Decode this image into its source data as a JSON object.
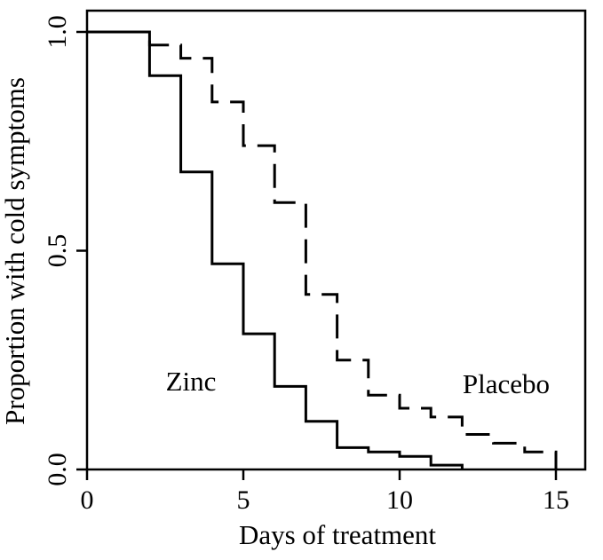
{
  "chart_data": {
    "type": "line",
    "subtype": "step (Kaplan-Meier survival curves)",
    "title": "",
    "xlabel": "Days of treatment",
    "ylabel": "Proportion with cold symptoms",
    "xlim": [
      0,
      16
    ],
    "ylim": [
      0,
      1.0
    ],
    "xticks": [
      0,
      5,
      10,
      15
    ],
    "xtick_labels": [
      "0",
      "5",
      "10",
      "15"
    ],
    "yticks": [
      0.0,
      0.5,
      1.0
    ],
    "ytick_labels": [
      "0.0",
      "0.5",
      "1.0"
    ],
    "grid": false,
    "legend": "none (curves labelled directly in plot)",
    "series": [
      {
        "name": "Zinc",
        "line_style": "solid",
        "color": "#000000",
        "x": [
          0,
          2,
          3,
          4,
          5,
          6,
          7,
          8,
          9,
          10,
          11,
          12
        ],
        "y": [
          1.0,
          0.9,
          0.68,
          0.47,
          0.31,
          0.19,
          0.11,
          0.05,
          0.04,
          0.03,
          0.01,
          0.0
        ]
      },
      {
        "name": "Placebo",
        "line_style": "dashed",
        "color": "#000000",
        "x": [
          0,
          2,
          3,
          4,
          5,
          6,
          7,
          8,
          9,
          10,
          11,
          12,
          13,
          14,
          15
        ],
        "y": [
          1.0,
          0.97,
          0.94,
          0.84,
          0.74,
          0.61,
          0.4,
          0.25,
          0.17,
          0.14,
          0.12,
          0.08,
          0.06,
          0.04,
          0.0
        ]
      }
    ],
    "annotations": [
      {
        "text": "Zinc",
        "series": "Zinc"
      },
      {
        "text": "Placebo",
        "series": "Placebo"
      }
    ]
  }
}
